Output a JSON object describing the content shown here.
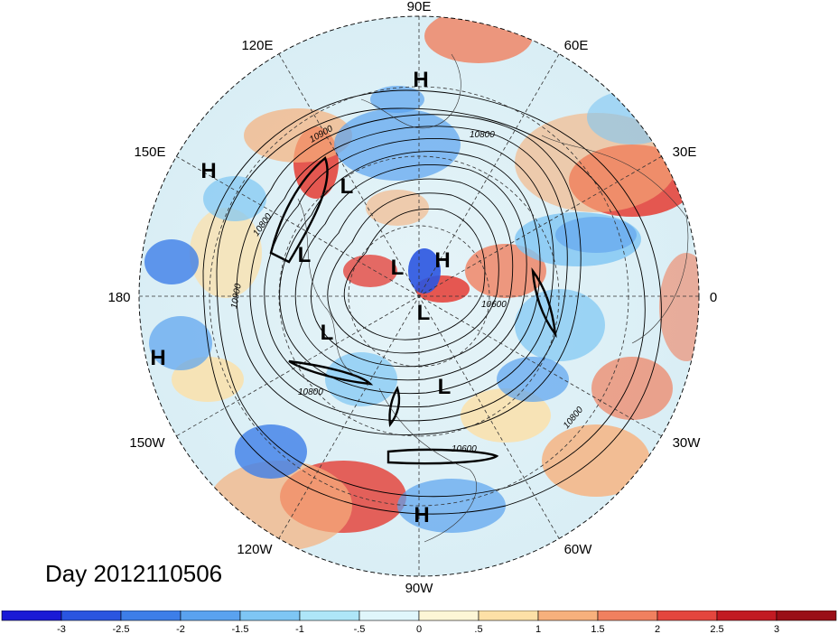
{
  "title": "Day 2012110506",
  "longitude_labels": {
    "lon_90E": "90E",
    "lon_60E": "60E",
    "lon_30E": "30E",
    "lon_0": "0",
    "lon_30W": "30W",
    "lon_60W": "60W",
    "lon_90W": "90W",
    "lon_120W": "120W",
    "lon_150W": "150W",
    "lon_180": "180",
    "lon_150E": "150E",
    "lon_120E": "120E"
  },
  "pressure_centers": [
    {
      "name": "high-1",
      "text": "H"
    },
    {
      "name": "high-2",
      "text": "H"
    },
    {
      "name": "high-3",
      "text": "H"
    },
    {
      "name": "high-4",
      "text": "H"
    },
    {
      "name": "high-5",
      "text": "H"
    },
    {
      "name": "low-1",
      "text": "L"
    },
    {
      "name": "low-2",
      "text": "L"
    },
    {
      "name": "low-3",
      "text": "L"
    },
    {
      "name": "low-4",
      "text": "L"
    },
    {
      "name": "low-5",
      "text": "L"
    },
    {
      "name": "low-6",
      "text": "L"
    }
  ],
  "contour_labels": [
    "10800",
    "10900",
    "10800",
    "10900",
    "10800",
    "10600",
    "10800",
    "10600"
  ],
  "colorbar": {
    "ticks": [
      "-3",
      "-2.5",
      "-2",
      "-1.5",
      "-1",
      "-.5",
      "0",
      ".5",
      "1",
      "1.5",
      "2",
      "2.5",
      "3"
    ],
    "colors": [
      "#1a1ad6",
      "#2a55e0",
      "#3d7ee8",
      "#5aa2ef",
      "#7ec6f4",
      "#aee6f8",
      "#e0f6fb",
      "#fdf6d6",
      "#fde0a6",
      "#f7b07c",
      "#f0805f",
      "#e4463e",
      "#c21a22",
      "#9a0e17"
    ]
  }
}
